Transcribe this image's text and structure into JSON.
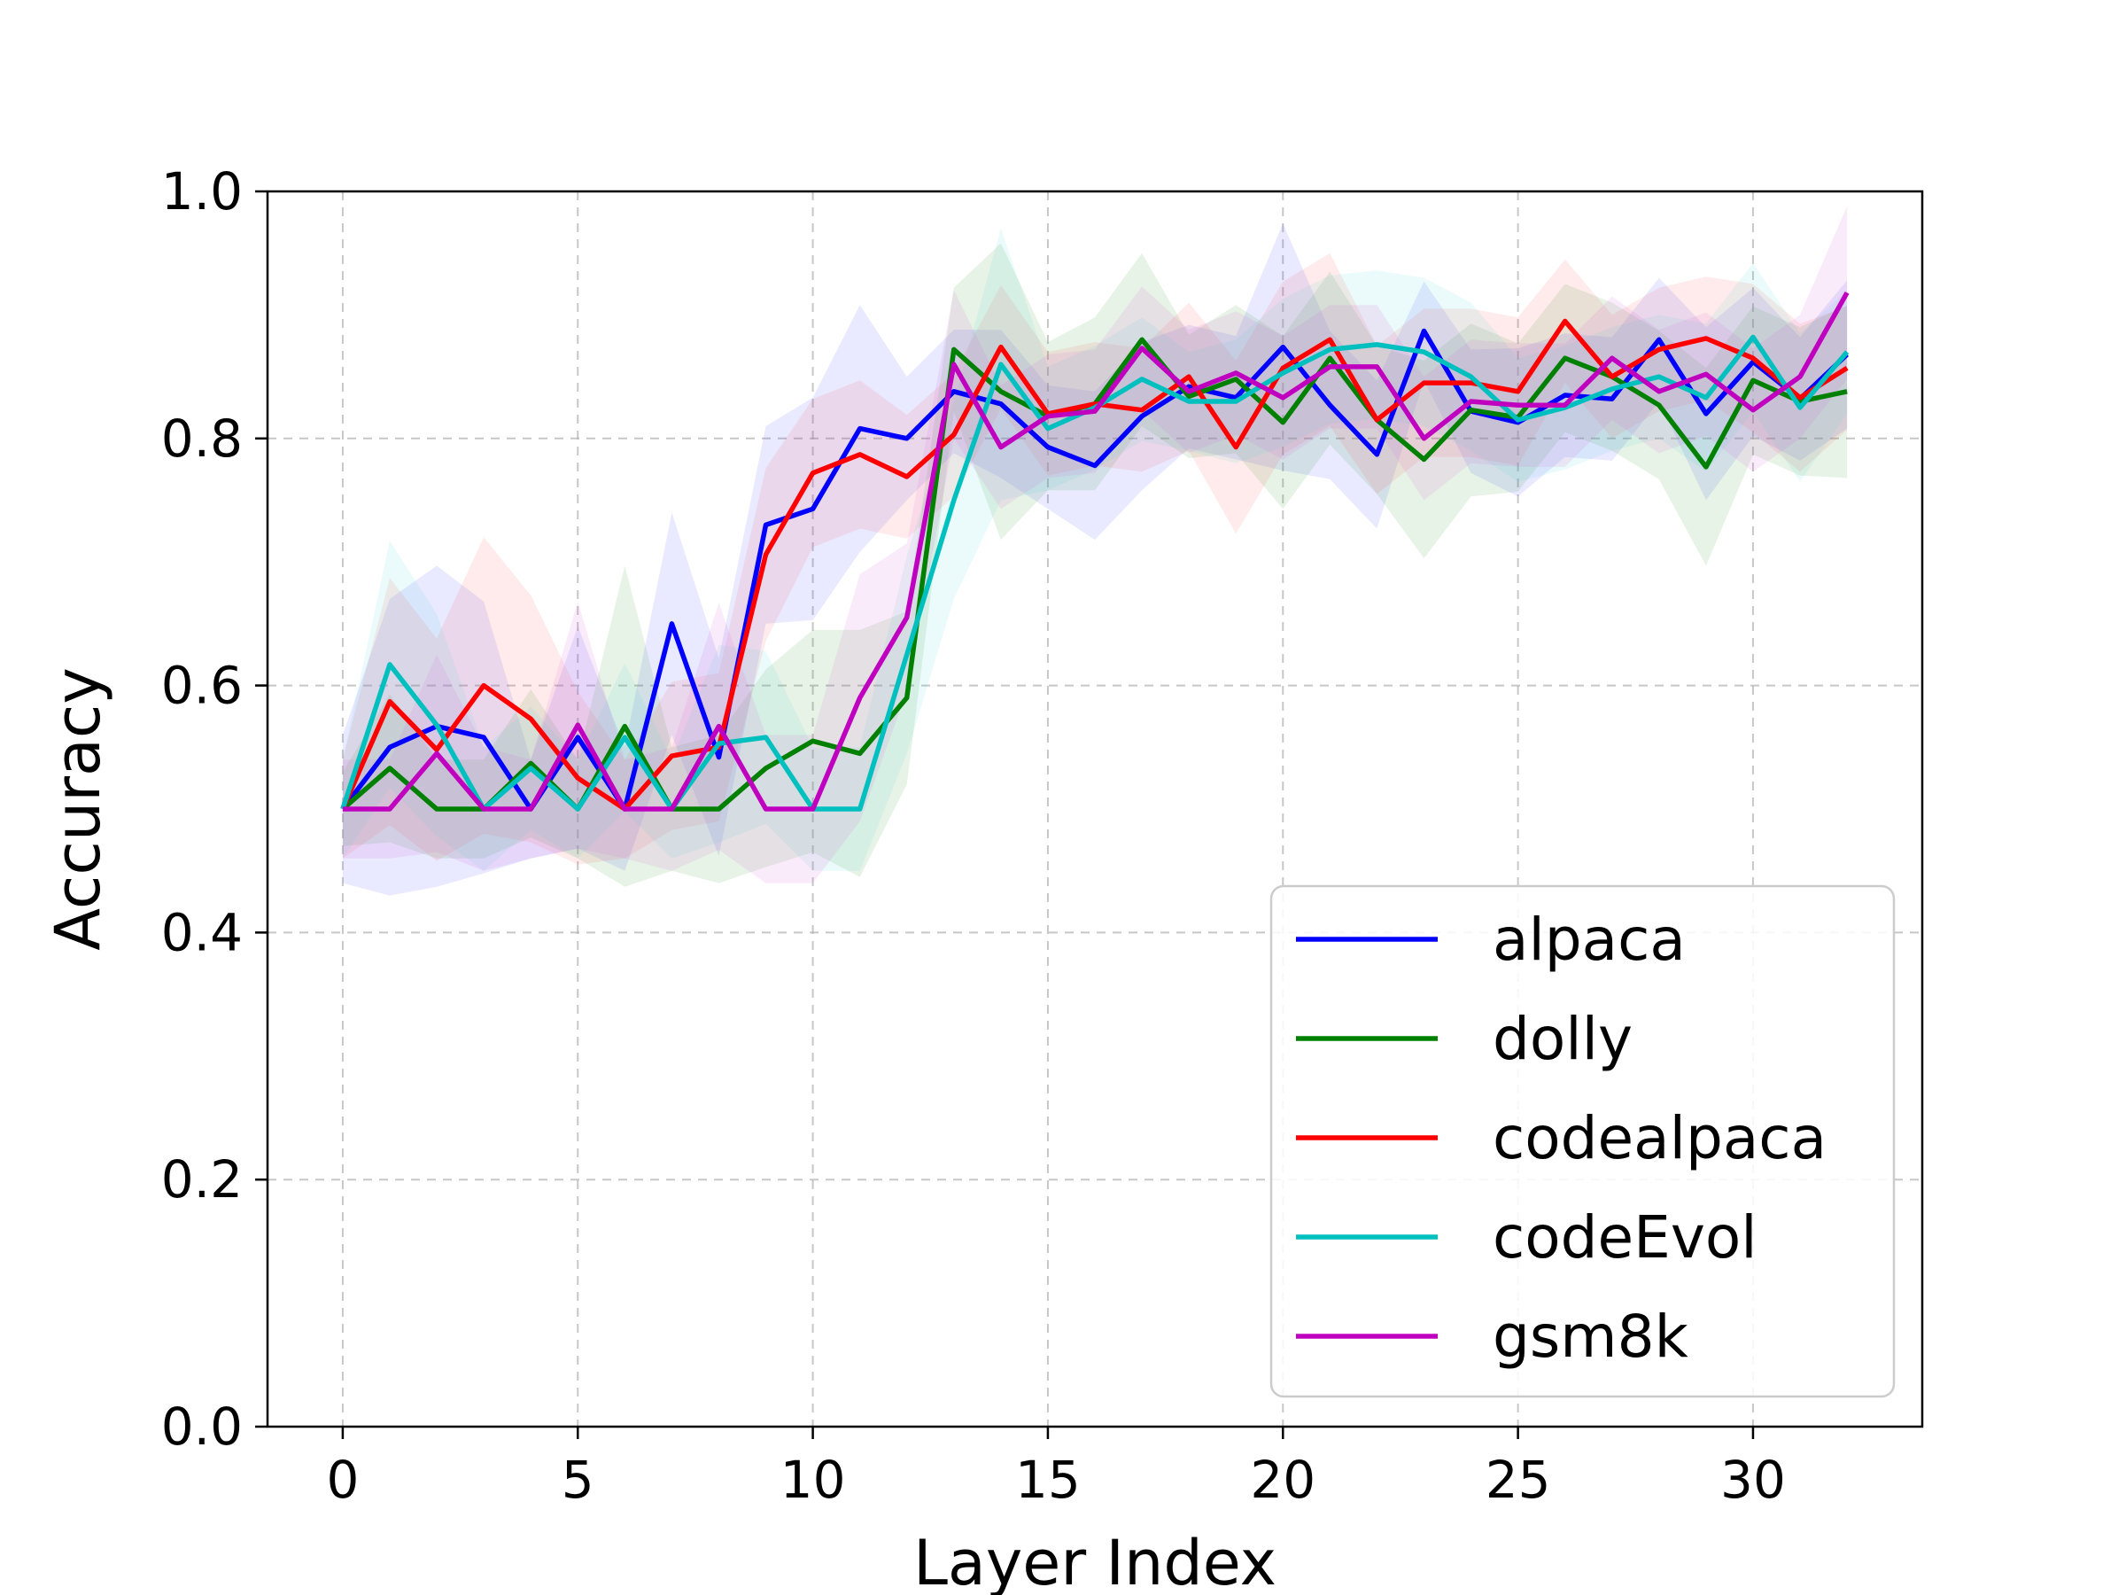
{
  "chart_data": {
    "type": "line",
    "title": "",
    "xlabel": "Layer Index",
    "ylabel": "Accuracy",
    "xlim": [
      -1.6,
      33.6
    ],
    "ylim": [
      0.0,
      1.0
    ],
    "xticks": [
      0,
      5,
      10,
      15,
      20,
      25,
      30
    ],
    "yticks": [
      0.0,
      0.2,
      0.4,
      0.6,
      0.8,
      1.0
    ],
    "xtick_labels": [
      "0",
      "5",
      "10",
      "15",
      "20",
      "25",
      "30"
    ],
    "ytick_labels": [
      "0.0",
      "0.2",
      "0.4",
      "0.6",
      "0.8",
      "1.0"
    ],
    "grid": true,
    "legend_position": "lower-right",
    "x": [
      0,
      1,
      2,
      3,
      4,
      5,
      6,
      7,
      8,
      9,
      10,
      11,
      12,
      13,
      14,
      15,
      16,
      17,
      18,
      19,
      20,
      21,
      22,
      23,
      24,
      25,
      26,
      27,
      28,
      29,
      30,
      31,
      32
    ],
    "series": [
      {
        "name": "alpaca",
        "color": "#0000ff",
        "band_color": "#4a4aff",
        "values": [
          0.5,
          0.55,
          0.567,
          0.558,
          0.5,
          0.558,
          0.5,
          0.65,
          0.542,
          0.73,
          0.743,
          0.808,
          0.8,
          0.838,
          0.828,
          0.793,
          0.778,
          0.818,
          0.842,
          0.833,
          0.874,
          0.827,
          0.787,
          0.887,
          0.822,
          0.813,
          0.835,
          0.832,
          0.88,
          0.82,
          0.862,
          0.832,
          0.868
        ],
        "band": [
          0.06,
          0.12,
          0.13,
          0.11,
          0.04,
          0.09,
          0.05,
          0.09,
          0.08,
          0.08,
          0.09,
          0.1,
          0.05,
          0.05,
          0.06,
          0.05,
          0.06,
          0.06,
          0.05,
          0.05,
          0.1,
          0.06,
          0.06,
          0.04,
          0.05,
          0.06,
          0.05,
          0.05,
          0.05,
          0.07,
          0.06,
          0.05,
          0.06
        ]
      },
      {
        "name": "dolly",
        "color": "#008000",
        "band_color": "#2f9f2f",
        "values": [
          0.5,
          0.533,
          0.5,
          0.5,
          0.537,
          0.5,
          0.567,
          0.5,
          0.5,
          0.533,
          0.555,
          0.545,
          0.59,
          0.872,
          0.838,
          0.818,
          0.828,
          0.88,
          0.834,
          0.848,
          0.813,
          0.865,
          0.815,
          0.783,
          0.823,
          0.817,
          0.865,
          0.85,
          0.827,
          0.777,
          0.847,
          0.83,
          0.838
        ],
        "band": [
          0.03,
          0.06,
          0.04,
          0.04,
          0.06,
          0.04,
          0.13,
          0.05,
          0.06,
          0.08,
          0.09,
          0.1,
          0.07,
          0.05,
          0.12,
          0.06,
          0.07,
          0.07,
          0.05,
          0.06,
          0.07,
          0.07,
          0.06,
          0.08,
          0.07,
          0.06,
          0.06,
          0.06,
          0.06,
          0.08,
          0.06,
          0.06,
          0.07
        ]
      },
      {
        "name": "codealpaca",
        "color": "#ff0000",
        "band_color": "#ff5a5a",
        "values": [
          0.5,
          0.587,
          0.548,
          0.6,
          0.573,
          0.525,
          0.5,
          0.543,
          0.55,
          0.706,
          0.772,
          0.787,
          0.769,
          0.803,
          0.874,
          0.82,
          0.828,
          0.823,
          0.85,
          0.793,
          0.857,
          0.88,
          0.815,
          0.845,
          0.845,
          0.838,
          0.895,
          0.85,
          0.872,
          0.881,
          0.865,
          0.833,
          0.857
        ],
        "band": [
          0.04,
          0.1,
          0.09,
          0.12,
          0.1,
          0.07,
          0.04,
          0.06,
          0.06,
          0.07,
          0.06,
          0.06,
          0.05,
          0.05,
          0.05,
          0.05,
          0.05,
          0.05,
          0.06,
          0.07,
          0.07,
          0.07,
          0.06,
          0.06,
          0.06,
          0.06,
          0.05,
          0.05,
          0.05,
          0.05,
          0.06,
          0.06,
          0.05
        ]
      },
      {
        "name": "codeEvol",
        "color": "#00bfbf",
        "band_color": "#5cd9d9",
        "values": [
          0.5,
          0.617,
          0.568,
          0.5,
          0.533,
          0.5,
          0.558,
          0.5,
          0.553,
          0.558,
          0.5,
          0.5,
          0.625,
          0.75,
          0.86,
          0.808,
          0.825,
          0.848,
          0.83,
          0.83,
          0.853,
          0.872,
          0.876,
          0.87,
          0.85,
          0.815,
          0.825,
          0.84,
          0.85,
          0.833,
          0.882,
          0.825,
          0.87
        ],
        "band": [
          0.04,
          0.1,
          0.09,
          0.05,
          0.05,
          0.04,
          0.06,
          0.04,
          0.08,
          0.07,
          0.05,
          0.05,
          0.08,
          0.08,
          0.11,
          0.05,
          0.05,
          0.05,
          0.04,
          0.05,
          0.06,
          0.06,
          0.06,
          0.06,
          0.06,
          0.05,
          0.05,
          0.05,
          0.05,
          0.06,
          0.06,
          0.06,
          0.05
        ]
      },
      {
        "name": "gsm8k",
        "color": "#bf00bf",
        "band_color": "#d95cd9",
        "values": [
          0.5,
          0.5,
          0.545,
          0.5,
          0.5,
          0.568,
          0.5,
          0.5,
          0.567,
          0.5,
          0.5,
          0.59,
          0.655,
          0.86,
          0.793,
          0.818,
          0.822,
          0.873,
          0.838,
          0.853,
          0.833,
          0.858,
          0.858,
          0.8,
          0.83,
          0.827,
          0.827,
          0.865,
          0.838,
          0.852,
          0.823,
          0.85,
          0.918
        ],
        "band": [
          0.04,
          0.04,
          0.08,
          0.05,
          0.04,
          0.1,
          0.04,
          0.05,
          0.1,
          0.06,
          0.06,
          0.1,
          0.06,
          0.06,
          0.05,
          0.05,
          0.05,
          0.05,
          0.05,
          0.05,
          0.05,
          0.05,
          0.05,
          0.05,
          0.05,
          0.05,
          0.05,
          0.05,
          0.05,
          0.05,
          0.05,
          0.05,
          0.07
        ]
      }
    ]
  }
}
